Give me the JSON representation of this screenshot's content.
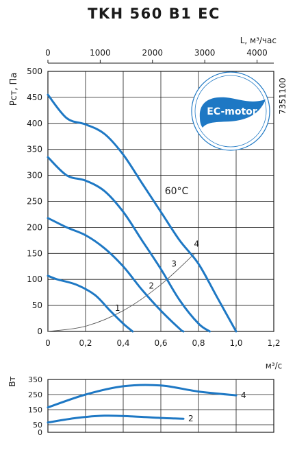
{
  "title": "TKH 560 B1 EC",
  "side_code": "7351100",
  "badge_text": "EC-motor",
  "colors": {
    "curve": "#1e78c4",
    "grid": "#1a1a1a",
    "system": "#555555",
    "badge": "#1e78c4"
  },
  "chart_data": [
    {
      "type": "line",
      "ylabel": "Pст, Па",
      "x_units_label": "м³/с",
      "top_axis_label": "L, м³/час",
      "xlim": [
        0,
        1.2
      ],
      "ylim": [
        0,
        500
      ],
      "x_ticks": [
        0,
        0.2,
        0.4,
        0.6,
        0.8,
        1.0,
        1.2
      ],
      "x_tick_labels": [
        "0",
        "0,2",
        "0,4",
        "0,6",
        "0,8",
        "1,0",
        "1,2"
      ],
      "y_ticks": [
        0,
        50,
        100,
        150,
        200,
        250,
        300,
        350,
        400,
        450,
        500
      ],
      "top_ticks": [
        0,
        1000,
        2000,
        3000,
        4000
      ],
      "top_tick_labels": [
        "0",
        "1000",
        "2000",
        "3000",
        "4000"
      ],
      "top_axis_factor": 3600,
      "temperature_label": "60°C",
      "series": [
        {
          "name": "1",
          "x": [
            0,
            0.05,
            0.15,
            0.25,
            0.33,
            0.4,
            0.45
          ],
          "y": [
            107,
            100,
            90,
            70,
            40,
            15,
            0
          ]
        },
        {
          "name": "2",
          "x": [
            0,
            0.1,
            0.2,
            0.3,
            0.4,
            0.5,
            0.6,
            0.7,
            0.72
          ],
          "y": [
            218,
            200,
            185,
            160,
            125,
            80,
            40,
            5,
            0
          ]
        },
        {
          "name": "3",
          "x": [
            0,
            0.1,
            0.2,
            0.3,
            0.4,
            0.5,
            0.6,
            0.7,
            0.8,
            0.86
          ],
          "y": [
            335,
            300,
            290,
            270,
            230,
            175,
            120,
            60,
            15,
            0
          ]
        },
        {
          "name": "4",
          "x": [
            0,
            0.1,
            0.2,
            0.3,
            0.4,
            0.5,
            0.6,
            0.7,
            0.8,
            0.9,
            1.0
          ],
          "y": [
            455,
            410,
            398,
            380,
            340,
            285,
            230,
            175,
            130,
            65,
            0
          ]
        }
      ],
      "system_curve": {
        "x": [
          0,
          0.2,
          0.4,
          0.6,
          0.78
        ],
        "y": [
          0,
          10,
          40,
          90,
          150
        ]
      },
      "curve_labels": [
        {
          "text": "1",
          "x": 0.37,
          "y": 45
        },
        {
          "text": "2",
          "x": 0.55,
          "y": 88
        },
        {
          "text": "3",
          "x": 0.67,
          "y": 130
        },
        {
          "text": "4",
          "x": 0.79,
          "y": 168
        }
      ]
    },
    {
      "type": "line",
      "ylabel": "Вт",
      "xlim": [
        0,
        1.2
      ],
      "ylim": [
        0,
        350
      ],
      "y_ticks": [
        0,
        50,
        150,
        250,
        350
      ],
      "series": [
        {
          "name": "2",
          "x": [
            0,
            0.15,
            0.3,
            0.45,
            0.6,
            0.72
          ],
          "y": [
            65,
            95,
            110,
            105,
            95,
            90
          ]
        },
        {
          "name": "4",
          "x": [
            0,
            0.2,
            0.4,
            0.6,
            0.8,
            1.0
          ],
          "y": [
            165,
            250,
            305,
            310,
            270,
            245
          ]
        }
      ]
    }
  ]
}
